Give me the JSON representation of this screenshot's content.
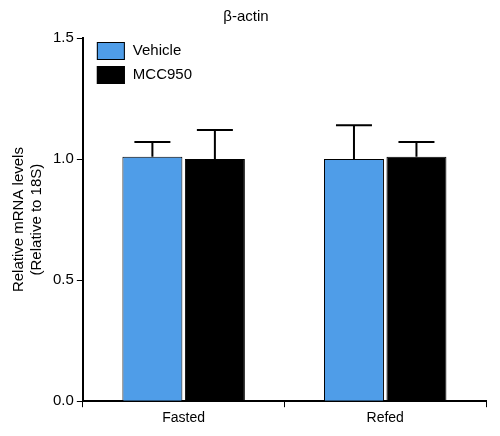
{
  "chart_data": {
    "type": "bar",
    "title": "β-actin",
    "y_label": [
      "Relative mRNA levels",
      "(Relative to 18S)"
    ],
    "categories": [
      "Fasted",
      "Refed"
    ],
    "series": [
      {
        "name": "Vehicle",
        "color": "#4f9de8",
        "values": [
          1.01,
          1.0
        ],
        "errors": [
          0.06,
          0.14
        ]
      },
      {
        "name": "MCC950",
        "color": "#000000",
        "values": [
          1.0,
          1.01
        ],
        "errors": [
          0.12,
          0.06
        ]
      }
    ],
    "ylim": [
      0,
      1.5
    ],
    "yticks": [
      {
        "value": 0,
        "label": "0.0"
      },
      {
        "value": 0.5,
        "label": "0.5"
      },
      {
        "value": 1,
        "label": "1.0"
      },
      {
        "value": 1.5,
        "label": "1.5"
      }
    ],
    "grid": false,
    "legend": "upper left"
  }
}
